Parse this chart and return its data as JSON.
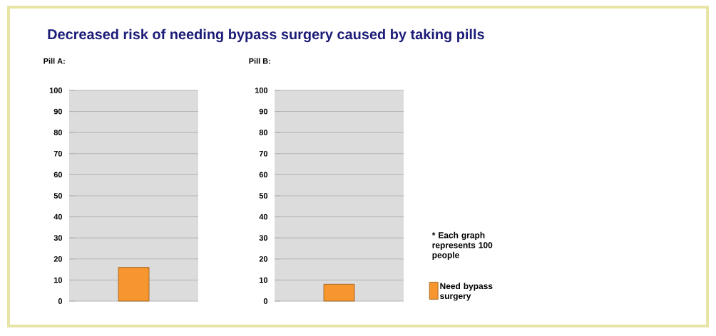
{
  "chart_data": [
    {
      "type": "bar",
      "title": "Decreased risk of needing bypass surgery caused by taking pills",
      "subtitle": "Pill A:",
      "categories": [
        null
      ],
      "series": [
        {
          "color": "#f7962f",
          "values": [
            16
          ]
        }
      ],
      "ylim": [
        0,
        100
      ],
      "yticks": [
        0,
        10,
        20,
        30,
        40,
        50,
        60,
        70,
        80,
        90,
        100
      ],
      "grid": "y"
    },
    {
      "type": "bar",
      "subtitle": "Pill B:",
      "categories": [
        null
      ],
      "series": [
        {
          "name": "Need bypass surgery",
          "color": "#f7962f",
          "values": [
            8
          ]
        }
      ],
      "ylim": [
        0,
        100
      ],
      "yticks": [
        0,
        10,
        20,
        30,
        40,
        50,
        60,
        70,
        80,
        90,
        100
      ],
      "grid": "y",
      "legend": "right",
      "annotations": [
        "* Each graph represents 100 people"
      ]
    }
  ]
}
